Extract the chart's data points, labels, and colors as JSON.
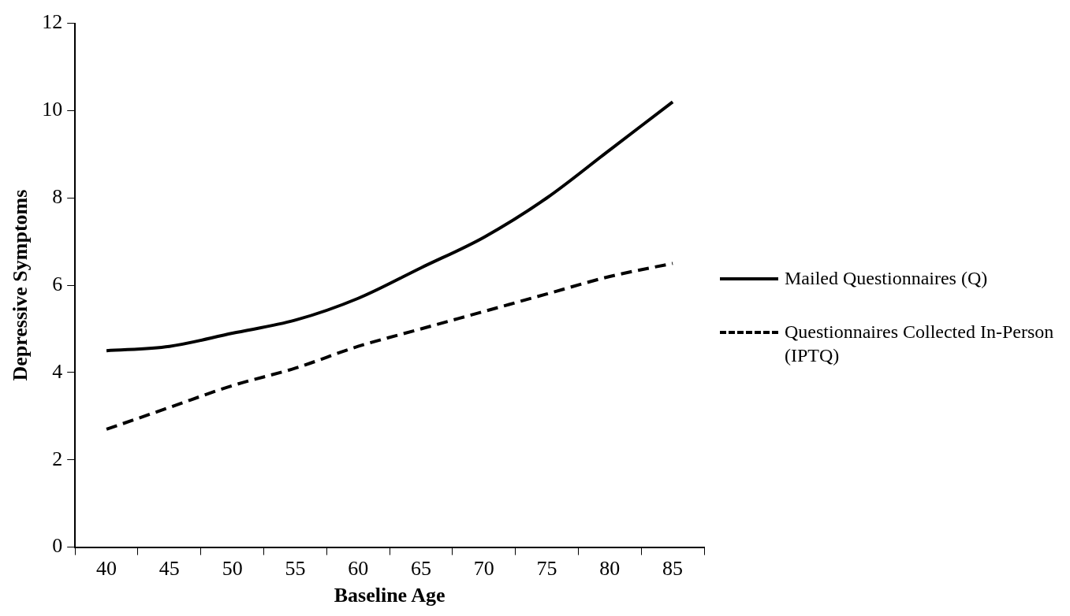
{
  "chart_data": {
    "type": "line",
    "xlabel": "Baseline Age",
    "ylabel": "Depressive Symptoms",
    "categories": [
      "40",
      "45",
      "50",
      "55",
      "60",
      "65",
      "70",
      "75",
      "80",
      "85"
    ],
    "series": [
      {
        "name": "Mailed Questionnaires (Q)",
        "color": "#000000",
        "line_style": "solid",
        "values": [
          4.5,
          4.6,
          4.9,
          5.2,
          5.7,
          6.4,
          7.1,
          8.0,
          9.1,
          10.2
        ]
      },
      {
        "name": "Questionnaires Collected In-Person (IPTQ)",
        "color": "#000000",
        "line_style": "dashed",
        "values": [
          2.7,
          3.2,
          3.7,
          4.1,
          4.6,
          5.0,
          5.4,
          5.8,
          6.2,
          6.5
        ]
      }
    ],
    "ylim": [
      0,
      12
    ],
    "yticks": [
      0,
      2,
      4,
      6,
      8,
      10,
      12
    ],
    "grid": false,
    "legend": "right",
    "marker": "none"
  }
}
